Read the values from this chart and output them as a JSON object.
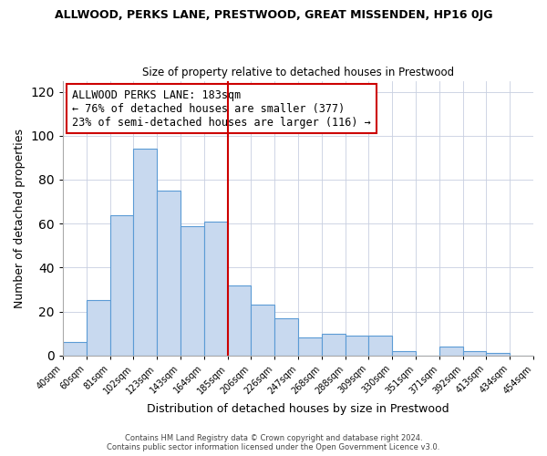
{
  "title": "ALLWOOD, PERKS LANE, PRESTWOOD, GREAT MISSENDEN, HP16 0JG",
  "subtitle": "Size of property relative to detached houses in Prestwood",
  "xlabel": "Distribution of detached houses by size in Prestwood",
  "ylabel": "Number of detached properties",
  "bin_labels": [
    "40sqm",
    "60sqm",
    "81sqm",
    "102sqm",
    "123sqm",
    "143sqm",
    "164sqm",
    "185sqm",
    "206sqm",
    "226sqm",
    "247sqm",
    "268sqm",
    "288sqm",
    "309sqm",
    "330sqm",
    "351sqm",
    "371sqm",
    "392sqm",
    "413sqm",
    "434sqm",
    "454sqm"
  ],
  "bar_heights": [
    6,
    25,
    64,
    94,
    75,
    59,
    61,
    32,
    23,
    17,
    8,
    10,
    9,
    9,
    2,
    0,
    4,
    2,
    1,
    0
  ],
  "bar_color": "#c8d9ef",
  "bar_edge_color": "#5b9bd5",
  "vline_index": 7,
  "vline_color": "#cc0000",
  "annotation_title": "ALLWOOD PERKS LANE: 183sqm",
  "annotation_line1": "← 76% of detached houses are smaller (377)",
  "annotation_line2": "23% of semi-detached houses are larger (116) →",
  "annotation_box_edge": "#cc0000",
  "ylim": [
    0,
    125
  ],
  "yticks": [
    0,
    20,
    40,
    60,
    80,
    100,
    120
  ],
  "footer1": "Contains HM Land Registry data © Crown copyright and database right 2024.",
  "footer2": "Contains public sector information licensed under the Open Government Licence v3.0."
}
